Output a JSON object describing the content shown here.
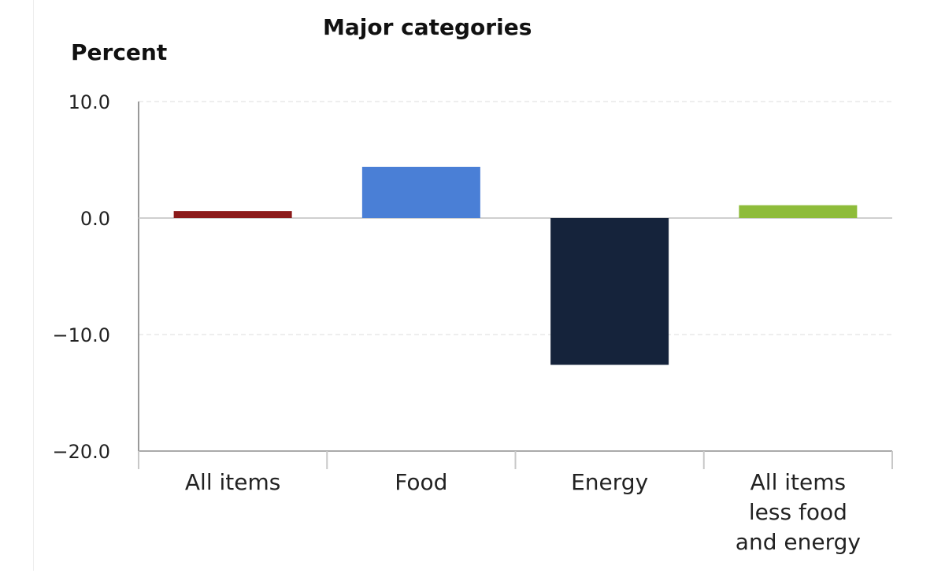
{
  "chart_data": {
    "type": "bar",
    "title": "Major categories",
    "ylabel": "Percent",
    "xlabel": "",
    "ylim": [
      -20,
      10
    ],
    "yticks": [
      "10.0",
      "0.0",
      "−10.0",
      "−20.0"
    ],
    "ytick_values": [
      10,
      0,
      -10,
      -20
    ],
    "grid": true,
    "categories": [
      [
        "All items"
      ],
      [
        "Food"
      ],
      [
        "Energy"
      ],
      [
        "All items",
        "less food",
        "and energy"
      ]
    ],
    "values": [
      0.6,
      4.4,
      -12.6,
      1.1
    ],
    "colors": [
      "#8b1a1a",
      "#4a7fd6",
      "#15233b",
      "#8ebc3a"
    ]
  }
}
